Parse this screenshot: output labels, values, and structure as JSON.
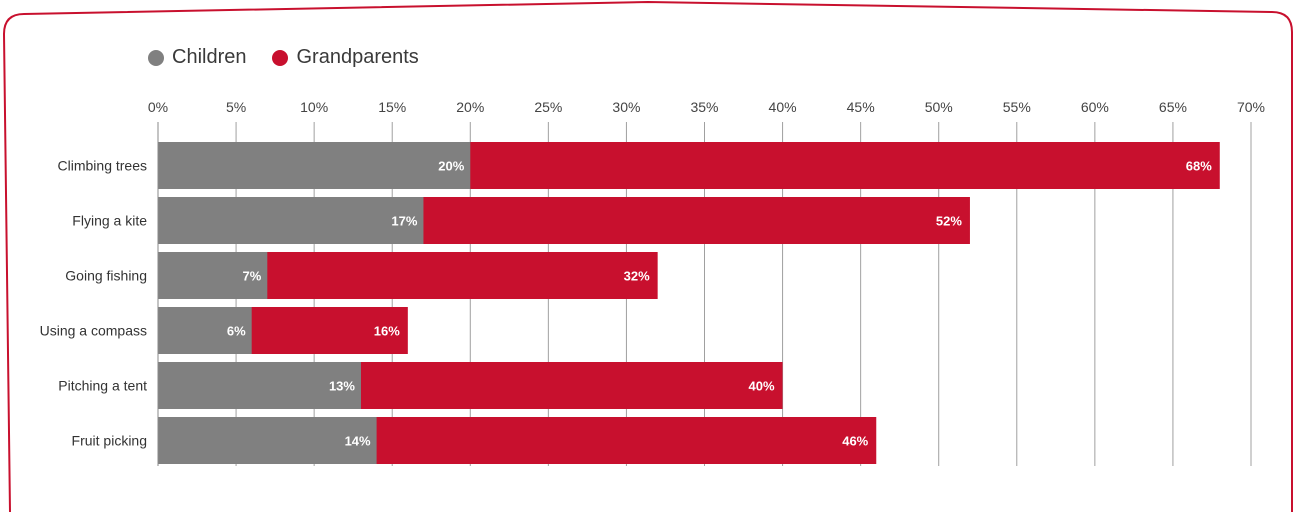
{
  "colors": {
    "children": "#808080",
    "grandparents": "#c8102e",
    "frame": "#c8102e",
    "grid": "#a0a0a0"
  },
  "legend": [
    {
      "key": "children",
      "label": "Children",
      "icon": "circle-dot-icon"
    },
    {
      "key": "grandparents",
      "label": "Grandparents",
      "icon": "circle-dot-icon"
    }
  ],
  "chart_data": {
    "type": "bar",
    "orientation": "horizontal",
    "stacking": "overlay",
    "categories": [
      "Climbing trees",
      "Flying a kite",
      "Going fishing",
      "Using a compass",
      "Pitching a tent",
      "Fruit picking"
    ],
    "series": [
      {
        "name": "Children",
        "values": [
          20,
          17,
          7,
          6,
          13,
          14
        ],
        "labels": [
          "20%",
          "17%",
          "7%",
          "6%",
          "13%",
          "14%"
        ]
      },
      {
        "name": "Grandparents",
        "values": [
          68,
          52,
          32,
          16,
          40,
          46
        ],
        "labels": [
          "68%",
          "52%",
          "32%",
          "16%",
          "40%",
          "46%"
        ]
      }
    ],
    "xlim": [
      0,
      70
    ],
    "xticks": [
      "0%",
      "5%",
      "10%",
      "15%",
      "20%",
      "25%",
      "30%",
      "35%",
      "40%",
      "45%",
      "50%",
      "55%",
      "60%",
      "65%",
      "70%"
    ],
    "x_axis_position": "top",
    "grid": true,
    "legend_position": "top-left"
  }
}
